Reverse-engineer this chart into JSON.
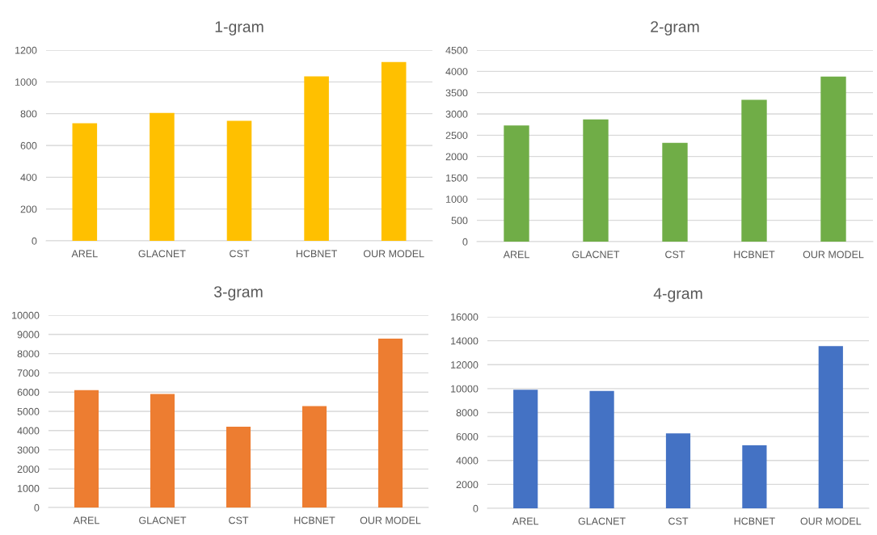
{
  "chart_data": [
    {
      "type": "bar",
      "title": "1-gram",
      "categories": [
        "AREL",
        "GLACNET",
        "CST",
        "HCBNET",
        "OUR MODEL"
      ],
      "values": [
        740,
        805,
        755,
        1035,
        1125
      ],
      "color": "#ffc000",
      "ylim": [
        0,
        1200
      ],
      "yticks": [
        0,
        200,
        400,
        600,
        800,
        1000,
        1200
      ],
      "grid": "y"
    },
    {
      "type": "bar",
      "title": "2-gram",
      "categories": [
        "AREL",
        "GLACNET",
        "CST",
        "HCBNET",
        "OUR MODEL"
      ],
      "values": [
        2730,
        2870,
        2320,
        3330,
        3880
      ],
      "color": "#70ad47",
      "ylim": [
        0,
        4500
      ],
      "yticks": [
        0,
        500,
        1000,
        1500,
        2000,
        2500,
        3000,
        3500,
        4000,
        4500
      ],
      "grid": "y"
    },
    {
      "type": "bar",
      "title": "3-gram",
      "categories": [
        "AREL",
        "GLACNET",
        "CST",
        "HCBNET",
        "OUR MODEL"
      ],
      "values": [
        6100,
        5900,
        4200,
        5270,
        8780
      ],
      "color": "#ed7d31",
      "ylim": [
        0,
        10000
      ],
      "yticks": [
        0,
        1000,
        2000,
        3000,
        4000,
        5000,
        6000,
        7000,
        8000,
        9000,
        10000
      ],
      "grid": "y"
    },
    {
      "type": "bar",
      "title": "4-gram",
      "categories": [
        "AREL",
        "GLACNET",
        "CST",
        "HCBNET",
        "OUR MODEL"
      ],
      "values": [
        9900,
        9800,
        6270,
        5270,
        13560
      ],
      "color": "#4472c4",
      "ylim": [
        0,
        16000
      ],
      "yticks": [
        0,
        2000,
        4000,
        6000,
        8000,
        10000,
        12000,
        14000,
        16000
      ],
      "grid": "y"
    }
  ]
}
